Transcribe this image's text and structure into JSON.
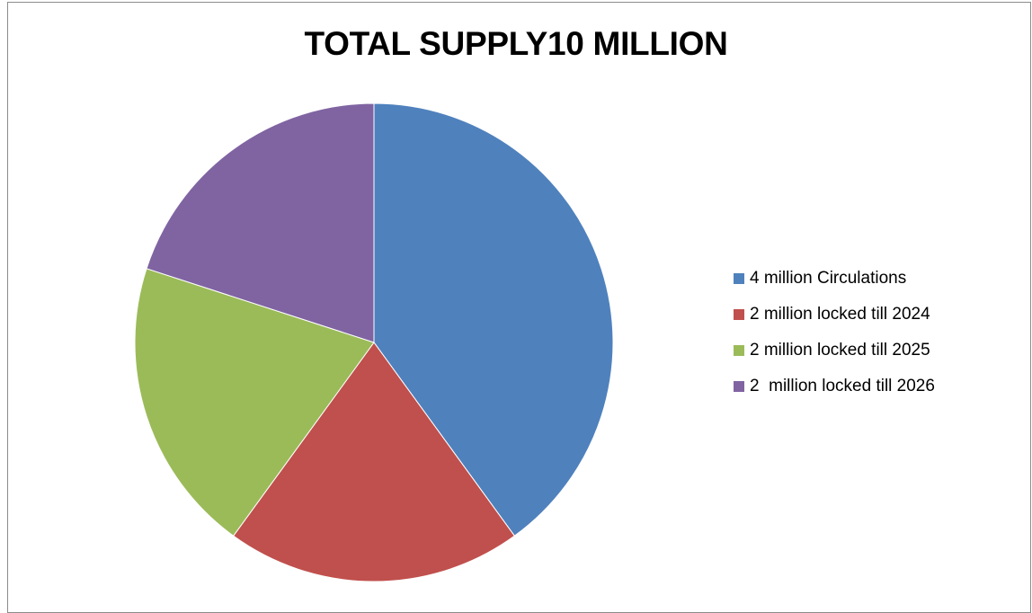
{
  "chart_data": {
    "type": "pie",
    "title": "TOTAL SUPPLY10 MILLION",
    "categories": [
      "4 million Circulations",
      "2 million locked till 2024",
      "2 million locked till 2025",
      "2  million locked till 2026"
    ],
    "values": [
      4,
      2,
      2,
      2
    ],
    "colors": [
      "#4f81bd",
      "#c0504d",
      "#9bbb59",
      "#8064a2"
    ],
    "legend_position": "right",
    "start_angle": "top",
    "direction": "clockwise"
  }
}
